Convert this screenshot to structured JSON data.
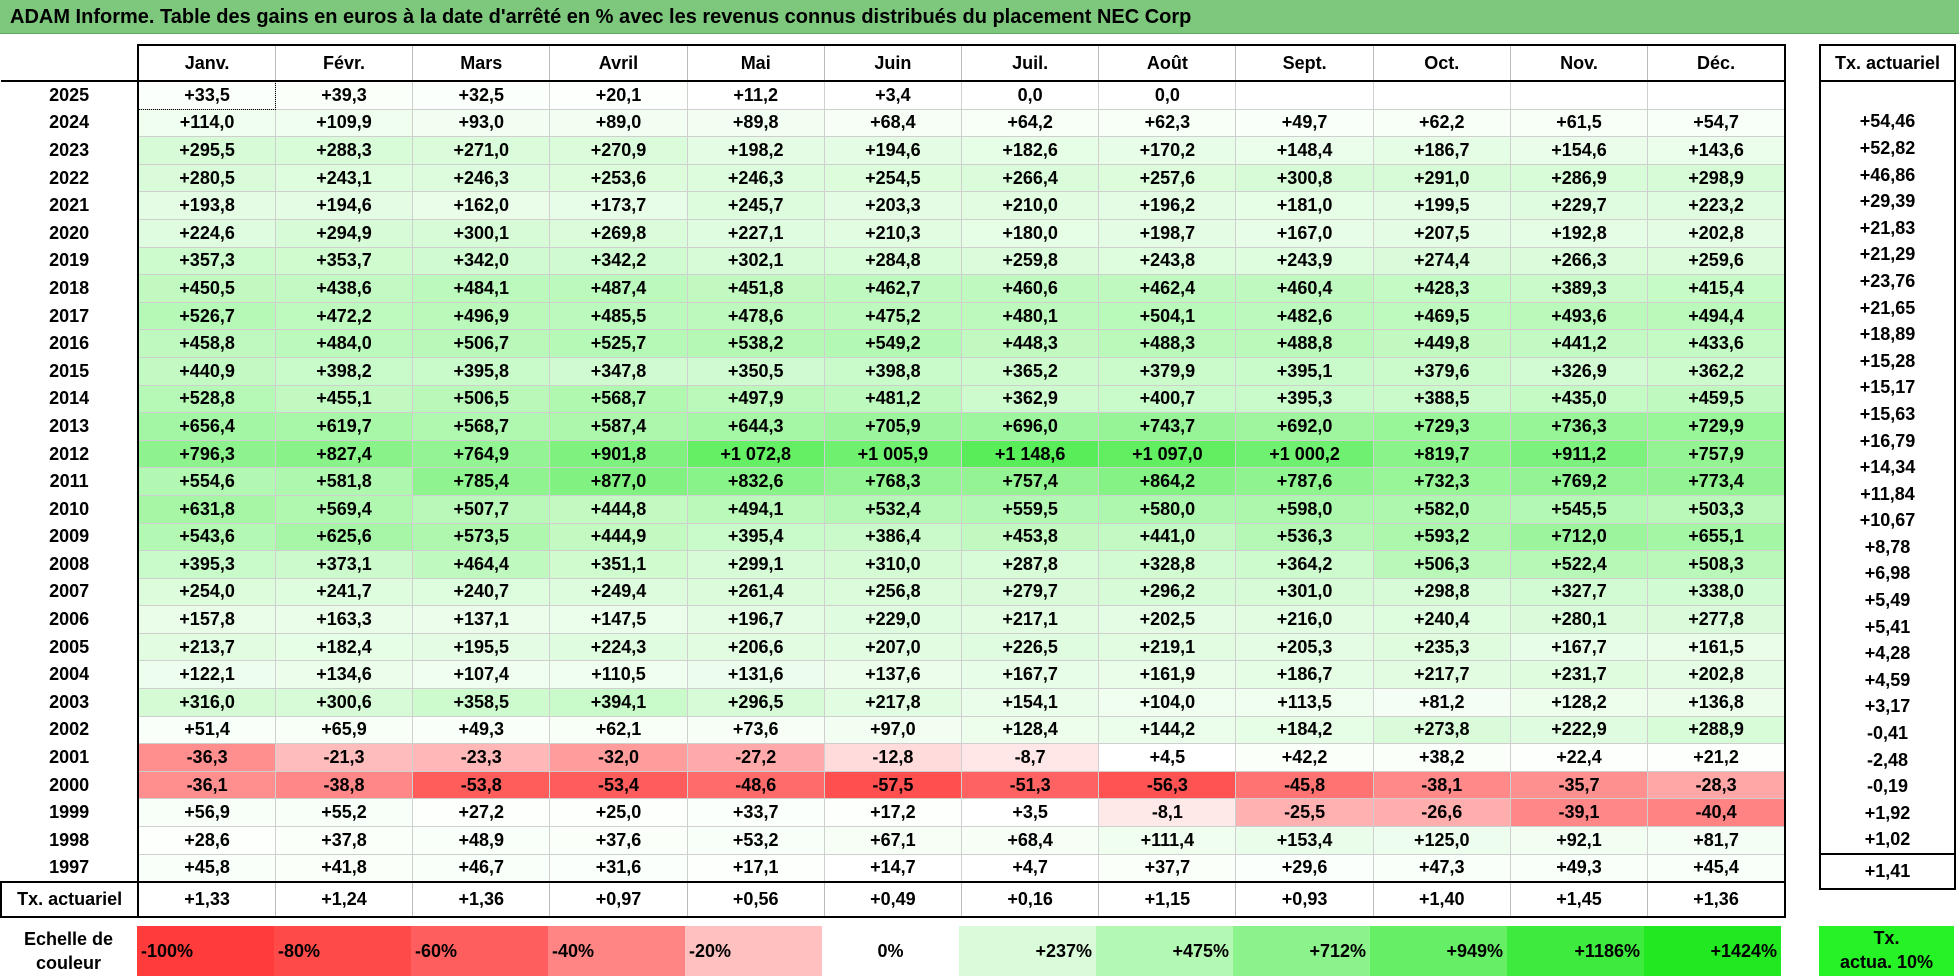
{
  "title": "ADAM Informe. Table des gains en euros à la date d'arrêté en % avec les revenus connus distribués du placement NEC Corp",
  "months": [
    "Janv.",
    "Févr.",
    "Mars",
    "Avril",
    "Mai",
    "Juin",
    "Juil.",
    "Août",
    "Sept.",
    "Oct.",
    "Nov.",
    "Déc."
  ],
  "actuarial_header": "Tx. actuariel",
  "rows": [
    {
      "year": "2025",
      "values": [
        "+33,5",
        "+39,3",
        "+32,5",
        "+20,1",
        "+11,2",
        "+3,4",
        "0,0",
        "0,0",
        "",
        "",
        "",
        ""
      ],
      "colors": [
        "#fbfffb",
        "#fafff9",
        "#fbfffb",
        "#fdfffd",
        "#fefffe",
        "#ffffff",
        "#ffffff",
        "#ffffff",
        "#ffffff",
        "#ffffff",
        "#ffffff",
        "#ffffff"
      ],
      "actuarial": ""
    },
    {
      "year": "2024",
      "values": [
        "+114,0",
        "+109,9",
        "+93,0",
        "+89,0",
        "+89,8",
        "+68,4",
        "+64,2",
        "+62,3",
        "+49,7",
        "+62,2",
        "+61,5",
        "+54,7"
      ],
      "colors": [
        "#effeef",
        "#f0fef0",
        "#f2fef2",
        "#f3fef3",
        "#f3fef3",
        "#f6fef6",
        "#f7fff7",
        "#f7fff7",
        "#f9fff9",
        "#f7fff7",
        "#f7fff7",
        "#f8fff8"
      ],
      "actuarial": "+54,46"
    },
    {
      "year": "2023",
      "values": [
        "+295,5",
        "+288,3",
        "+271,0",
        "+270,9",
        "+198,2",
        "+194,6",
        "+182,6",
        "+170,2",
        "+148,4",
        "+186,7",
        "+154,6",
        "+143,6"
      ],
      "colors": [
        "#d7fbd7",
        "#d8fbd8",
        "#dafcda",
        "#dafcda",
        "#e4fce4",
        "#e4fce4",
        "#e6fde6",
        "#e8fde8",
        "#ebfdeb",
        "#e5fde5",
        "#eafdea",
        "#ebfdeb"
      ],
      "actuarial": "+52,82"
    },
    {
      "year": "2022",
      "values": [
        "+280,5",
        "+243,1",
        "+246,3",
        "+253,6",
        "+246,3",
        "+254,5",
        "+266,4",
        "+257,6",
        "+300,8",
        "+291,0",
        "+286,9",
        "+298,9"
      ],
      "colors": [
        "#d9fbd9",
        "#defcde",
        "#ddfcdd",
        "#dcfcdc",
        "#ddfcdd",
        "#dcfcdc",
        "#dafcda",
        "#dcfcdc",
        "#d6fbd6",
        "#d7fbd7",
        "#d8fbd8",
        "#d6fbd6"
      ],
      "actuarial": "+46,86"
    },
    {
      "year": "2021",
      "values": [
        "+193,8",
        "+194,6",
        "+162,0",
        "+173,7",
        "+245,7",
        "+203,3",
        "+210,0",
        "+196,2",
        "+181,0",
        "+199,5",
        "+229,7",
        "+223,2"
      ],
      "colors": [
        "#e4fce4",
        "#e4fce4",
        "#e9fde9",
        "#e7fde7",
        "#ddfcdd",
        "#e3fce3",
        "#e2fce2",
        "#e4fce4",
        "#e6fde6",
        "#e4fce4",
        "#e0fce0",
        "#e0fce0"
      ],
      "actuarial": "+29,39"
    },
    {
      "year": "2020",
      "values": [
        "+224,6",
        "+294,9",
        "+300,1",
        "+269,8",
        "+227,1",
        "+210,3",
        "+180,0",
        "+198,7",
        "+167,0",
        "+207,5",
        "+192,8",
        "+202,8"
      ],
      "colors": [
        "#e0fce0",
        "#d7fbd7",
        "#d6fbd6",
        "#dafcda",
        "#e0fce0",
        "#e2fce2",
        "#e6fde6",
        "#e4fce4",
        "#e8fde8",
        "#e3fce3",
        "#e5fce5",
        "#e3fce3"
      ],
      "actuarial": "+21,83"
    },
    {
      "year": "2019",
      "values": [
        "+357,3",
        "+353,7",
        "+342,0",
        "+342,2",
        "+302,1",
        "+284,8",
        "+259,8",
        "+243,8",
        "+243,9",
        "+274,4",
        "+266,3",
        "+259,6"
      ],
      "colors": [
        "#cefbce",
        "#cffbcf",
        "#d0fbd0",
        "#d0fbd0",
        "#d6fbd6",
        "#d8fbd8",
        "#dbfcdb",
        "#defcde",
        "#defcde",
        "#d9fbd9",
        "#dafcda",
        "#dbfcdb"
      ],
      "actuarial": "+21,29"
    },
    {
      "year": "2018",
      "values": [
        "+450,5",
        "+438,6",
        "+484,1",
        "+487,4",
        "+451,8",
        "+462,7",
        "+460,6",
        "+462,4",
        "+460,4",
        "+428,3",
        "+389,3",
        "+415,4"
      ],
      "colors": [
        "#c1f9c1",
        "#c3fac3",
        "#bcf9bc",
        "#bcf9bc",
        "#c1f9c1",
        "#c0f9c0",
        "#c0f9c0",
        "#c0f9c0",
        "#c0f9c0",
        "#c4fac4",
        "#cafaca",
        "#c6fac6"
      ],
      "actuarial": "+23,76"
    },
    {
      "year": "2017",
      "values": [
        "+526,7",
        "+472,2",
        "+496,9",
        "+485,5",
        "+478,6",
        "+475,2",
        "+480,1",
        "+504,1",
        "+482,6",
        "+469,5",
        "+493,6",
        "+494,4"
      ],
      "colors": [
        "#b6f8b6",
        "#befabe",
        "#baf9ba",
        "#bcf9bc",
        "#bdf9bd",
        "#bdf9bd",
        "#bdf9bd",
        "#b9f9b9",
        "#bcf9bc",
        "#bef9be",
        "#bbf9bb",
        "#bbf9bb"
      ],
      "actuarial": "+21,65"
    },
    {
      "year": "2016",
      "values": [
        "+458,8",
        "+484,0",
        "+506,7",
        "+525,7",
        "+538,2",
        "+549,2",
        "+448,3",
        "+488,3",
        "+488,8",
        "+449,8",
        "+441,2",
        "+433,6"
      ],
      "colors": [
        "#c0f9c0",
        "#bcf9bc",
        "#b9f8b9",
        "#b6f8b6",
        "#b4f8b4",
        "#b3f8b3",
        "#c1f9c1",
        "#bbf9bb",
        "#bbf9bb",
        "#c1f9c1",
        "#c3fac3",
        "#c4fac4"
      ],
      "actuarial": "+18,89"
    },
    {
      "year": "2015",
      "values": [
        "+440,9",
        "+398,2",
        "+395,8",
        "+347,8",
        "+350,5",
        "+398,8",
        "+365,2",
        "+379,9",
        "+395,1",
        "+379,6",
        "+326,9",
        "+362,2"
      ],
      "colors": [
        "#c3fac3",
        "#c9fac9",
        "#c9fac9",
        "#d0fbd0",
        "#d0fbd0",
        "#c9fac9",
        "#cdfbcd",
        "#cbfacb",
        "#c9fac9",
        "#cbfacb",
        "#d3fbd3",
        "#cefbce"
      ],
      "actuarial": "+15,28"
    },
    {
      "year": "2014",
      "values": [
        "+528,8",
        "+455,1",
        "+506,5",
        "+568,7",
        "+497,9",
        "+481,2",
        "+362,9",
        "+400,7",
        "+395,3",
        "+388,5",
        "+435,0",
        "+459,5"
      ],
      "colors": [
        "#b6f8b6",
        "#c1f9c1",
        "#b9f8b9",
        "#b0f8b0",
        "#bbf9bb",
        "#bdf9bd",
        "#cefbce",
        "#c9fac9",
        "#c9fac9",
        "#cafaca",
        "#c4fac4",
        "#c0f9c0"
      ],
      "actuarial": "+15,17"
    },
    {
      "year": "2013",
      "values": [
        "+656,4",
        "+619,7",
        "+568,7",
        "+587,4",
        "+644,3",
        "+705,9",
        "+696,0",
        "+743,7",
        "+692,0",
        "+729,3",
        "+736,3",
        "+729,9"
      ],
      "colors": [
        "#a3f6a3",
        "#a8f7a8",
        "#b0f8b0",
        "#adf7ad",
        "#a5f6a5",
        "#9cf59c",
        "#9df59d",
        "#96f496",
        "#9ef59e",
        "#98f598",
        "#97f497",
        "#98f598"
      ],
      "actuarial": "+15,63"
    },
    {
      "year": "2012",
      "values": [
        "+796,3",
        "+827,4",
        "+764,9",
        "+901,8",
        "+1 072,8",
        "+1 005,9",
        "+1 148,6",
        "+1 097,0",
        "+1 000,2",
        "+819,7",
        "+911,2",
        "+757,9"
      ],
      "colors": [
        "#8ef38e",
        "#89f389",
        "#93f493",
        "#7ef17e",
        "#65ef65",
        "#6ff06f",
        "#59ed59",
        "#61ee61",
        "#70f070",
        "#8af38a",
        "#7df17d",
        "#94f494"
      ],
      "actuarial": "+16,79"
    },
    {
      "year": "2011",
      "values": [
        "+554,6",
        "+581,8",
        "+785,4",
        "+877,0",
        "+832,6",
        "+768,3",
        "+757,4",
        "+864,2",
        "+787,6",
        "+732,3",
        "+769,2",
        "+773,4"
      ],
      "colors": [
        "#b2f8b2",
        "#aef7ae",
        "#8ff38f",
        "#81f281",
        "#88f388",
        "#92f492",
        "#94f494",
        "#84f284",
        "#8ff38f",
        "#98f598",
        "#92f492",
        "#91f391"
      ],
      "actuarial": "+14,34"
    },
    {
      "year": "2010",
      "values": [
        "+631,8",
        "+569,4",
        "+507,7",
        "+444,8",
        "+494,1",
        "+532,4",
        "+559,5",
        "+580,0",
        "+598,0",
        "+582,0",
        "+545,5",
        "+503,3"
      ],
      "colors": [
        "#a6f6a6",
        "#b0f8b0",
        "#b9f8b9",
        "#c2fac2",
        "#bbf9bb",
        "#b5f8b5",
        "#b2f8b2",
        "#aef7ae",
        "#abf7ab",
        "#aef7ae",
        "#b3f8b3",
        "#b9f8b9"
      ],
      "actuarial": "+11,84"
    },
    {
      "year": "2009",
      "values": [
        "+543,6",
        "+625,6",
        "+573,5",
        "+444,9",
        "+395,4",
        "+386,4",
        "+453,8",
        "+441,0",
        "+536,3",
        "+593,2",
        "+712,0",
        "+655,1"
      ],
      "colors": [
        "#b3f8b3",
        "#a7f6a7",
        "#aff7af",
        "#c2fac2",
        "#c9fac9",
        "#cafaca",
        "#c1f9c1",
        "#c3fac3",
        "#b5f8b5",
        "#acf7ac",
        "#9cf59c",
        "#a4f6a4"
      ],
      "actuarial": "+10,67"
    },
    {
      "year": "2008",
      "values": [
        "+395,3",
        "+373,1",
        "+464,4",
        "+351,1",
        "+299,1",
        "+310,0",
        "+287,8",
        "+328,8",
        "+364,2",
        "+506,3",
        "+522,4",
        "+508,3"
      ],
      "colors": [
        "#c9fac9",
        "#ccfacc",
        "#bff9bf",
        "#cffbcf",
        "#d6fbd6",
        "#d5fbd5",
        "#d8fbd8",
        "#d2fbd2",
        "#cdfbcd",
        "#b9f8b9",
        "#b7f8b7",
        "#b9f8b9"
      ],
      "actuarial": "+8,78"
    },
    {
      "year": "2007",
      "values": [
        "+254,0",
        "+241,7",
        "+240,7",
        "+249,4",
        "+261,4",
        "+256,8",
        "+279,7",
        "+296,2",
        "+301,0",
        "+298,8",
        "+327,7",
        "+338,0"
      ],
      "colors": [
        "#dcfcdc",
        "#defcde",
        "#defcde",
        "#ddfcdd",
        "#dbfcdb",
        "#dbfcdb",
        "#d9fbd9",
        "#d7fbd7",
        "#d6fbd6",
        "#d6fbd6",
        "#d3fbd3",
        "#d1fbd1"
      ],
      "actuarial": "+6,98"
    },
    {
      "year": "2006",
      "values": [
        "+157,8",
        "+163,3",
        "+137,1",
        "+147,5",
        "+196,7",
        "+229,0",
        "+217,1",
        "+202,5",
        "+216,0",
        "+240,4",
        "+280,1",
        "+277,8"
      ],
      "colors": [
        "#e9fde9",
        "#e9fde9",
        "#ecfdec",
        "#ebfdeb",
        "#e4fce4",
        "#e0fce0",
        "#e1fce1",
        "#e3fce3",
        "#e1fce1",
        "#defcde",
        "#d9fbd9",
        "#d9fbd9"
      ],
      "actuarial": "+5,49"
    },
    {
      "year": "2005",
      "values": [
        "+213,7",
        "+182,4",
        "+195,5",
        "+224,3",
        "+206,6",
        "+207,0",
        "+226,5",
        "+219,1",
        "+205,3",
        "+235,3",
        "+167,7",
        "+161,5"
      ],
      "colors": [
        "#e1fce1",
        "#e6fde6",
        "#e4fce4",
        "#e0fce0",
        "#e2fce2",
        "#e2fce2",
        "#e0fce0",
        "#e1fce1",
        "#e3fce3",
        "#dffcdf",
        "#e8fde8",
        "#e9fde9"
      ],
      "actuarial": "+5,41"
    },
    {
      "year": "2004",
      "values": [
        "+122,1",
        "+134,6",
        "+107,4",
        "+110,5",
        "+131,6",
        "+137,6",
        "+167,7",
        "+161,9",
        "+186,7",
        "+217,7",
        "+231,7",
        "+202,8"
      ],
      "colors": [
        "#eefeee",
        "#ecfdec",
        "#f0fef0",
        "#f0fef0",
        "#edfded",
        "#ecfdec",
        "#e8fde8",
        "#e9fde9",
        "#e5fde5",
        "#e1fce1",
        "#dffcdf",
        "#e3fce3"
      ],
      "actuarial": "+4,28"
    },
    {
      "year": "2003",
      "values": [
        "+316,0",
        "+300,6",
        "+358,5",
        "+394,1",
        "+296,5",
        "+217,8",
        "+154,1",
        "+104,0",
        "+113,5",
        "+81,2",
        "+128,2",
        "+136,8"
      ],
      "colors": [
        "#d4fbd4",
        "#d6fbd6",
        "#cefbce",
        "#c9fac9",
        "#d7fbd7",
        "#e1fce1",
        "#eafdea",
        "#f0fef0",
        "#effeef",
        "#f4fef4",
        "#edfeed",
        "#ecfdec"
      ],
      "actuarial": "+4,59"
    },
    {
      "year": "2002",
      "values": [
        "+51,4",
        "+65,9",
        "+49,3",
        "+62,1",
        "+73,6",
        "+97,0",
        "+128,4",
        "+144,2",
        "+184,2",
        "+273,8",
        "+222,9",
        "+288,9"
      ],
      "colors": [
        "#f9fff9",
        "#f7fff7",
        "#f9fff9",
        "#f7fff7",
        "#f6fef6",
        "#f2fef2",
        "#edfeed",
        "#ebfdeb",
        "#e6fde6",
        "#d9fbd9",
        "#e0fce0",
        "#d8fbd8"
      ],
      "actuarial": "+3,17"
    },
    {
      "year": "2001",
      "values": [
        "-36,3",
        "-21,3",
        "-23,3",
        "-32,0",
        "-27,2",
        "-12,8",
        "-8,7",
        "+4,5",
        "+42,2",
        "+38,2",
        "+22,4",
        "+21,2"
      ],
      "colors": [
        "#ff8f8f",
        "#ffbcbc",
        "#ffb7b7",
        "#ff9c9c",
        "#ffaaaa",
        "#ffdbdb",
        "#ffe7e7",
        "#ffffff",
        "#fafffa",
        "#fafffa",
        "#fcfffc",
        "#fcfffc"
      ],
      "actuarial": "-0,41"
    },
    {
      "year": "2000",
      "values": [
        "-36,1",
        "-38,8",
        "-53,8",
        "-53,4",
        "-48,6",
        "-57,5",
        "-51,3",
        "-56,3",
        "-45,8",
        "-38,1",
        "-35,7",
        "-28,3"
      ],
      "colors": [
        "#ff8f8f",
        "#ff8787",
        "#ff5c5c",
        "#ff5d5d",
        "#ff6a6a",
        "#ff4f4f",
        "#ff6262",
        "#ff5353",
        "#ff7373",
        "#ff8989",
        "#ff9090",
        "#ffa6a6"
      ],
      "actuarial": "-2,48"
    },
    {
      "year": "1999",
      "values": [
        "+56,9",
        "+55,2",
        "+27,2",
        "+25,0",
        "+33,7",
        "+17,2",
        "+3,5",
        "-8,1",
        "-25,5",
        "-26,6",
        "-39,1",
        "-40,4"
      ],
      "colors": [
        "#f8fff8",
        "#f8fff8",
        "#fcfffc",
        "#fcfffc",
        "#fbfffb",
        "#fdfffd",
        "#ffffff",
        "#ffe8e8",
        "#ffb0b0",
        "#ffadad",
        "#ff8787",
        "#ff8383"
      ],
      "actuarial": "-0,19"
    },
    {
      "year": "1998",
      "values": [
        "+28,6",
        "+37,8",
        "+48,9",
        "+37,6",
        "+53,2",
        "+67,1",
        "+68,4",
        "+111,4",
        "+153,4",
        "+125,0",
        "+92,1",
        "+81,7"
      ],
      "colors": [
        "#fcfffc",
        "#fafffa",
        "#f9fff9",
        "#fafffa",
        "#f8fff8",
        "#f6fef6",
        "#f6fef6",
        "#f0fef0",
        "#eafdea",
        "#eefeee",
        "#f2fef2",
        "#f4fef4"
      ],
      "actuarial": "+1,92"
    },
    {
      "year": "1997",
      "values": [
        "+45,8",
        "+41,8",
        "+46,7",
        "+31,6",
        "+17,1",
        "+14,7",
        "+4,7",
        "+37,7",
        "+29,6",
        "+47,3",
        "+49,3",
        "+45,4"
      ],
      "colors": [
        "#f9fff9",
        "#fafffa",
        "#f9fff9",
        "#fbfffb",
        "#fdfffd",
        "#fefffe",
        "#ffffff",
        "#fafffa",
        "#fbfffb",
        "#f9fff9",
        "#f9fff9",
        "#f9fff9"
      ],
      "actuarial": "+1,02"
    }
  ],
  "footer": {
    "label": "Tx. actuariel",
    "values": [
      "+1,33",
      "+1,24",
      "+1,36",
      "+0,97",
      "+0,56",
      "+0,49",
      "+0,16",
      "+1,15",
      "+0,93",
      "+1,40",
      "+1,45",
      "+1,36"
    ],
    "actuarial": "+1,41"
  },
  "legend": {
    "label_line1": "Echelle de",
    "label_line2": "couleur",
    "cells": [
      {
        "text": "-100%",
        "color": "#ff3b3b",
        "align": "left"
      },
      {
        "text": "-80%",
        "color": "#ff4a4a",
        "align": "left"
      },
      {
        "text": "-60%",
        "color": "#ff5e5e",
        "align": "left"
      },
      {
        "text": "-40%",
        "color": "#ff8585",
        "align": "left"
      },
      {
        "text": "-20%",
        "color": "#ffc0c0",
        "align": "left"
      },
      {
        "text": "0%",
        "color": "#ffffff",
        "align": "center"
      },
      {
        "text": "+237%",
        "color": "#d9fbd9",
        "align": "right"
      },
      {
        "text": "+475%",
        "color": "#b3f8b3",
        "align": "right"
      },
      {
        "text": "+712%",
        "color": "#8cf38c",
        "align": "right"
      },
      {
        "text": "+949%",
        "color": "#66ef66",
        "align": "right"
      },
      {
        "text": "+1186%",
        "color": "#3fea3f",
        "align": "right"
      },
      {
        "text": "+1424%",
        "color": "#22e822",
        "align": "right"
      }
    ],
    "right_line1": "Tx.",
    "right_line2": "actua. 10%",
    "right_color": "#26f326"
  }
}
